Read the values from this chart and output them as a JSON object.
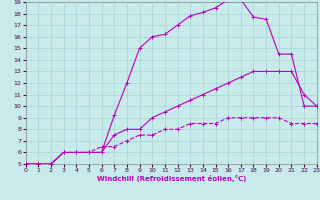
{
  "xlabel": "Windchill (Refroidissement éolien,°C)",
  "xlim": [
    0,
    23
  ],
  "ylim": [
    5,
    19
  ],
  "xticks": [
    0,
    1,
    2,
    3,
    4,
    5,
    6,
    7,
    8,
    9,
    10,
    11,
    12,
    13,
    14,
    15,
    16,
    17,
    18,
    19,
    20,
    21,
    22,
    23
  ],
  "yticks": [
    5,
    6,
    7,
    8,
    9,
    10,
    11,
    12,
    13,
    14,
    15,
    16,
    17,
    18,
    19
  ],
  "bg_color": "#c8eaea",
  "grid_color": "#a8d8d8",
  "line_color": "#bb00bb",
  "series": [
    {
      "x": [
        0,
        1,
        2,
        3,
        4,
        5,
        6,
        7,
        8,
        9,
        10,
        11,
        12,
        13,
        14,
        15,
        16,
        17,
        18,
        19,
        20,
        21,
        22,
        23
      ],
      "y": [
        5,
        5,
        5,
        6,
        6,
        6,
        6,
        9.2,
        12,
        15,
        16,
        16.2,
        17,
        17.8,
        18.1,
        18.5,
        19.2,
        19.2,
        17.7,
        17.5,
        14.5,
        14.5,
        10.0,
        10.0
      ],
      "marker": true,
      "dashed": false
    },
    {
      "x": [
        0,
        1,
        2,
        3,
        4,
        5,
        6,
        7,
        8,
        9,
        10,
        11,
        12,
        13,
        14,
        15,
        16,
        17,
        18,
        19,
        20,
        21,
        22,
        23
      ],
      "y": [
        5,
        5,
        5,
        6,
        6,
        6,
        6,
        7.5,
        8,
        8,
        9,
        9.5,
        10,
        10.5,
        11,
        11.5,
        12,
        12.5,
        13,
        13,
        13,
        13,
        11,
        10
      ],
      "marker": true,
      "dashed": false
    },
    {
      "x": [
        0,
        1,
        2,
        3,
        4,
        5,
        6,
        7,
        8,
        9,
        10,
        11,
        12,
        13,
        14,
        15,
        16,
        17,
        18,
        19,
        20,
        21,
        22,
        23
      ],
      "y": [
        5,
        5,
        5,
        6,
        6,
        6,
        6.5,
        6.5,
        7,
        7.5,
        7.5,
        8,
        8,
        8.5,
        8.5,
        8.5,
        9,
        9,
        9,
        9,
        9,
        8.5,
        8.5,
        8.5
      ],
      "marker": true,
      "dashed": true
    }
  ]
}
